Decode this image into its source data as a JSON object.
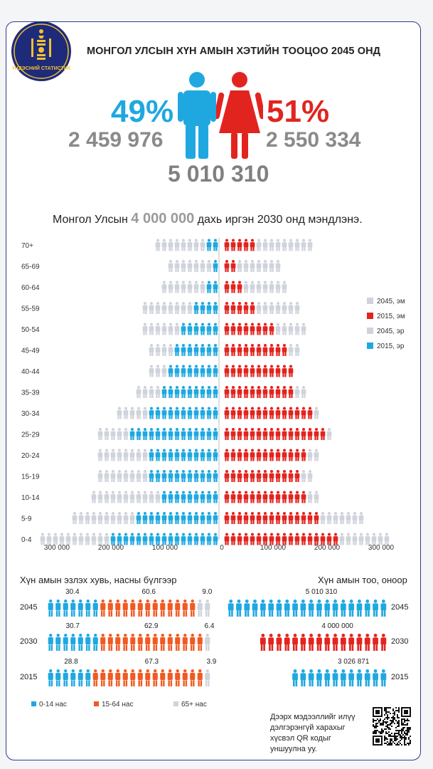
{
  "header": {
    "logo_text": "ҮНДЭСНИЙ СТАТИСТИК",
    "title": "МОНГОЛ УЛСЫН ХҮН АМЫН ХЭТИЙН ТООЦОО 2045 ОНД"
  },
  "summary": {
    "male_pct": "49%",
    "female_pct": "51%",
    "male_count": "2 459 976",
    "female_count": "2 550 334",
    "total": "5 010 310",
    "colors": {
      "male": "#1fa8e0",
      "female": "#e2241f",
      "grey": "#cfd3db",
      "orange": "#f05a22"
    }
  },
  "headline": {
    "before": "Монгол Улсын ",
    "highlight": "4 000 000",
    "after": " дахь иргэн 2030 онд мэндлэнэ."
  },
  "chart_data": [
    {
      "type": "bar",
      "title": "",
      "categories": [
        "70+",
        "65-69",
        "60-64",
        "55-59",
        "50-54",
        "45-49",
        "40-44",
        "35-39",
        "30-34",
        "25-29",
        "20-24",
        "15-19",
        "10-14",
        "5-9",
        "0-4"
      ],
      "x_ticks": [
        "300 000",
        "200 000",
        "100 000",
        "0",
        "100 000",
        "200 000",
        "300 000"
      ],
      "xlim": [
        -320000,
        320000
      ],
      "legend_position": "right",
      "series": [
        {
          "name": "2045, эм",
          "side": "right",
          "color": "#cfd3db",
          "values": [
            160000,
            105000,
            120000,
            140000,
            155000,
            145000,
            130000,
            150000,
            175000,
            205000,
            175000,
            165000,
            175000,
            265000,
            310000
          ]
        },
        {
          "name": "2015, эм",
          "side": "right",
          "color": "#e2241f",
          "values": [
            55000,
            25000,
            38000,
            62000,
            92000,
            115000,
            135000,
            135000,
            160000,
            185000,
            150000,
            145000,
            150000,
            180000,
            215000
          ]
        },
        {
          "name": "2045, эр",
          "side": "left",
          "color": "#cfd3db",
          "values": [
            115000,
            90000,
            110000,
            140000,
            140000,
            125000,
            125000,
            150000,
            190000,
            225000,
            225000,
            225000,
            235000,
            270000,
            330000
          ]
        },
        {
          "name": "2015, эр",
          "side": "left",
          "color": "#1fa8e0",
          "values": [
            20000,
            12000,
            20000,
            48000,
            70000,
            82000,
            95000,
            110000,
            132000,
            160000,
            135000,
            125000,
            110000,
            150000,
            200000
          ]
        }
      ]
    },
    {
      "type": "bar",
      "title": "Хүн амын эзлэх хувь, насны бүлгээр",
      "categories": [
        "2045",
        "2030",
        "2015"
      ],
      "series": [
        {
          "name": "0-14 нас",
          "color": "#1fa8e0",
          "values": [
            30.4,
            30.7,
            28.8
          ]
        },
        {
          "name": "15-64 нас",
          "color": "#f05a22",
          "values": [
            60.6,
            62.9,
            67.3
          ]
        },
        {
          "name": "65+ нас",
          "color": "#cfd3db",
          "values": [
            9.0,
            6.4,
            3.9
          ]
        }
      ],
      "value_labels": [
        [
          "30.4",
          "60.6",
          "9.0"
        ],
        [
          "30.7",
          "62.9",
          "6.4"
        ],
        [
          "28.8",
          "67.3",
          "3.9"
        ]
      ]
    },
    {
      "type": "bar",
      "title": "Хүн амын тоо, оноор",
      "categories": [
        "2045",
        "2030",
        "2015"
      ],
      "values": [
        5010310,
        4000000,
        3026871
      ],
      "value_labels": [
        "5 010 310",
        "4 000 000",
        "3 026 871"
      ],
      "colors": [
        "#1fa8e0",
        "#e2241f",
        "#1fa8e0"
      ]
    }
  ],
  "qr_note": "Дээрх мэдээллийг илүү дэлгэрэнгүй харахыг хүсвэл QR кодыг уншуулна уу."
}
